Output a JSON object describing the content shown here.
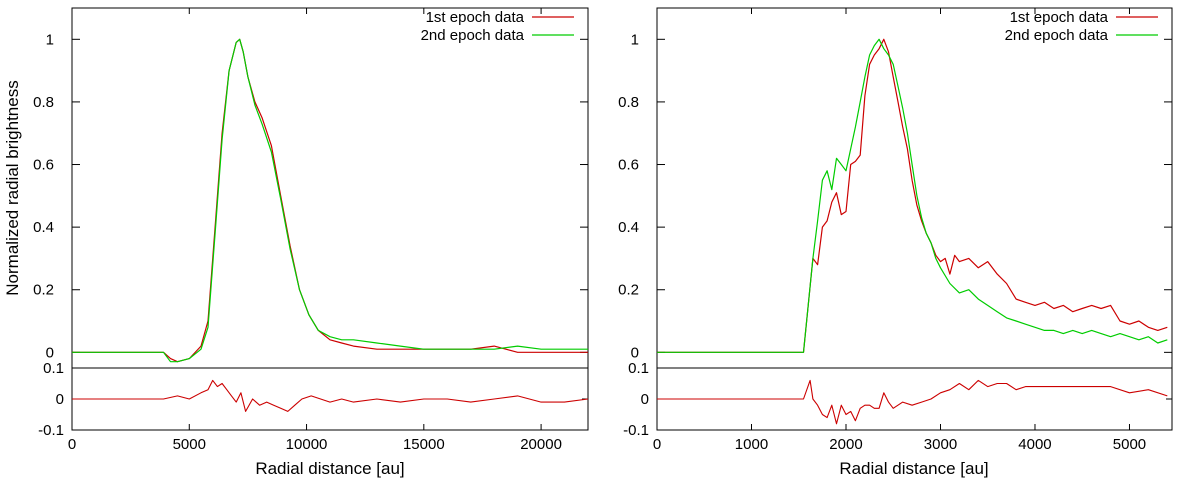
{
  "chart_data": [
    {
      "type": "line",
      "panel": "left",
      "xlabel": "Radial distance [au]",
      "ylabel": "Normalized radial brightness",
      "xlim": [
        0,
        22000
      ],
      "ylim": [
        -0.05,
        1.1
      ],
      "xticks": [
        0,
        5000,
        10000,
        15000,
        20000
      ],
      "xtick_labels": [
        "0",
        "5000",
        "10000",
        "15000",
        "20000"
      ],
      "yticks": [
        0,
        0.2,
        0.4,
        0.6,
        0.8,
        1
      ],
      "ytick_labels": [
        "0",
        "0.2",
        "0.4",
        "0.6",
        "0.8",
        "1"
      ],
      "legend_position": "top-right",
      "grid": false,
      "series": [
        {
          "name": "1st epoch data",
          "color": "#cc0000",
          "x": [
            0,
            3900,
            4200,
            4500,
            5000,
            5500,
            5800,
            6100,
            6400,
            6700,
            7000,
            7150,
            7300,
            7500,
            7800,
            8100,
            8500,
            8900,
            9300,
            9700,
            10100,
            10500,
            11000,
            11500,
            12000,
            13000,
            14000,
            15000,
            16000,
            17000,
            18000,
            18500,
            19000,
            20000,
            21000,
            22000
          ],
          "y": [
            0,
            0,
            -0.02,
            -0.03,
            -0.02,
            0.02,
            0.1,
            0.4,
            0.7,
            0.9,
            0.99,
            1.0,
            0.96,
            0.88,
            0.8,
            0.75,
            0.66,
            0.5,
            0.34,
            0.2,
            0.12,
            0.07,
            0.04,
            0.03,
            0.02,
            0.01,
            0.01,
            0.01,
            0.01,
            0.01,
            0.02,
            0.01,
            0.0,
            0.0,
            0.0,
            0.0
          ]
        },
        {
          "name": "2nd epoch data",
          "color": "#00cc00",
          "x": [
            0,
            3900,
            4200,
            4500,
            5000,
            5500,
            5800,
            6100,
            6400,
            6700,
            7000,
            7150,
            7300,
            7500,
            7800,
            8100,
            8500,
            8900,
            9300,
            9700,
            10100,
            10500,
            11000,
            11500,
            12000,
            13000,
            14000,
            15000,
            16000,
            17000,
            18000,
            19000,
            20000,
            21000,
            22000
          ],
          "y": [
            0,
            0,
            -0.03,
            -0.03,
            -0.02,
            0.01,
            0.08,
            0.38,
            0.68,
            0.9,
            0.99,
            1.0,
            0.96,
            0.88,
            0.79,
            0.73,
            0.64,
            0.49,
            0.33,
            0.2,
            0.12,
            0.07,
            0.05,
            0.04,
            0.04,
            0.03,
            0.02,
            0.01,
            0.01,
            0.01,
            0.01,
            0.02,
            0.01,
            0.01,
            0.01
          ]
        }
      ],
      "residual": {
        "ylim": [
          -0.1,
          0.1
        ],
        "yticks": [
          -0.1,
          0,
          0.1
        ],
        "ytick_labels": [
          "-0.1",
          "0",
          "0.1"
        ],
        "color": "#cc0000",
        "x": [
          0,
          3900,
          4500,
          5000,
          5500,
          5800,
          6000,
          6200,
          6400,
          6600,
          6800,
          7000,
          7200,
          7400,
          7700,
          8000,
          8300,
          8600,
          8900,
          9200,
          9500,
          9800,
          10200,
          10600,
          11000,
          11500,
          12000,
          13000,
          14000,
          15000,
          16000,
          17000,
          18000,
          19000,
          20000,
          21000,
          22000
        ],
        "y": [
          0,
          0,
          0.01,
          0.0,
          0.02,
          0.03,
          0.06,
          0.04,
          0.05,
          0.03,
          0.01,
          -0.01,
          0.02,
          -0.04,
          0.0,
          -0.02,
          -0.01,
          -0.02,
          -0.03,
          -0.04,
          -0.02,
          0.0,
          0.01,
          0.0,
          -0.01,
          0.0,
          -0.01,
          0.0,
          -0.01,
          0.0,
          0.0,
          -0.01,
          0.0,
          0.01,
          -0.01,
          -0.01,
          0.0
        ]
      }
    },
    {
      "type": "line",
      "panel": "right",
      "xlabel": "Radial distance [au]",
      "ylabel": "",
      "xlim": [
        0,
        5450
      ],
      "ylim": [
        -0.05,
        1.1
      ],
      "xticks": [
        0,
        1000,
        2000,
        3000,
        4000,
        5000
      ],
      "xtick_labels": [
        "0",
        "1000",
        "2000",
        "3000",
        "4000",
        "5000"
      ],
      "yticks": [
        0,
        0.2,
        0.4,
        0.6,
        0.8,
        1
      ],
      "ytick_labels": [
        "0",
        "0.2",
        "0.4",
        "0.6",
        "0.8",
        "1"
      ],
      "legend_position": "top-right",
      "grid": false,
      "series": [
        {
          "name": "1st epoch data",
          "color": "#cc0000",
          "x": [
            0,
            1550,
            1600,
            1650,
            1700,
            1750,
            1800,
            1850,
            1900,
            1950,
            2000,
            2050,
            2100,
            2150,
            2200,
            2250,
            2300,
            2350,
            2400,
            2450,
            2500,
            2550,
            2600,
            2650,
            2700,
            2750,
            2800,
            2850,
            2900,
            2950,
            3000,
            3050,
            3100,
            3150,
            3200,
            3300,
            3400,
            3500,
            3600,
            3700,
            3800,
            3900,
            4000,
            4100,
            4200,
            4300,
            4400,
            4500,
            4600,
            4700,
            4800,
            4900,
            5000,
            5100,
            5200,
            5300,
            5400
          ],
          "y": [
            0,
            0,
            0.15,
            0.3,
            0.28,
            0.4,
            0.42,
            0.48,
            0.51,
            0.44,
            0.45,
            0.6,
            0.61,
            0.63,
            0.82,
            0.92,
            0.95,
            0.97,
            1.0,
            0.96,
            0.88,
            0.8,
            0.72,
            0.65,
            0.55,
            0.47,
            0.42,
            0.38,
            0.35,
            0.31,
            0.29,
            0.3,
            0.25,
            0.31,
            0.29,
            0.3,
            0.27,
            0.29,
            0.25,
            0.22,
            0.17,
            0.16,
            0.15,
            0.16,
            0.14,
            0.15,
            0.13,
            0.14,
            0.15,
            0.14,
            0.15,
            0.1,
            0.09,
            0.1,
            0.08,
            0.07,
            0.08
          ]
        },
        {
          "name": "2nd epoch data",
          "color": "#00cc00",
          "x": [
            0,
            1550,
            1600,
            1650,
            1700,
            1750,
            1800,
            1850,
            1900,
            1950,
            2000,
            2050,
            2100,
            2150,
            2200,
            2250,
            2300,
            2350,
            2400,
            2450,
            2500,
            2550,
            2600,
            2650,
            2700,
            2750,
            2800,
            2850,
            2900,
            2950,
            3000,
            3100,
            3200,
            3300,
            3400,
            3500,
            3600,
            3700,
            3800,
            3900,
            4000,
            4100,
            4200,
            4300,
            4400,
            4500,
            4600,
            4700,
            4800,
            4900,
            5000,
            5100,
            5200,
            5300,
            5400
          ],
          "y": [
            0,
            0,
            0.15,
            0.3,
            0.42,
            0.55,
            0.58,
            0.52,
            0.62,
            0.6,
            0.58,
            0.65,
            0.72,
            0.8,
            0.88,
            0.95,
            0.98,
            1.0,
            0.97,
            0.95,
            0.92,
            0.85,
            0.78,
            0.7,
            0.6,
            0.5,
            0.43,
            0.38,
            0.35,
            0.3,
            0.27,
            0.22,
            0.19,
            0.2,
            0.17,
            0.15,
            0.13,
            0.11,
            0.1,
            0.09,
            0.08,
            0.07,
            0.07,
            0.06,
            0.07,
            0.06,
            0.07,
            0.06,
            0.05,
            0.06,
            0.05,
            0.04,
            0.05,
            0.03,
            0.04
          ]
        }
      ],
      "residual": {
        "ylim": [
          -0.1,
          0.1
        ],
        "yticks": [
          -0.1,
          0,
          0.1
        ],
        "ytick_labels": [
          "-0.1",
          "0",
          "0.1"
        ],
        "color": "#cc0000",
        "x": [
          0,
          1550,
          1620,
          1650,
          1700,
          1750,
          1800,
          1850,
          1900,
          1950,
          2000,
          2050,
          2100,
          2150,
          2200,
          2250,
          2300,
          2350,
          2400,
          2450,
          2500,
          2600,
          2700,
          2800,
          2900,
          3000,
          3100,
          3200,
          3300,
          3400,
          3500,
          3600,
          3700,
          3800,
          3900,
          4000,
          4200,
          4400,
          4600,
          4800,
          5000,
          5200,
          5400
        ],
        "y": [
          0,
          0,
          0.06,
          0.0,
          -0.02,
          -0.05,
          -0.06,
          -0.02,
          -0.08,
          -0.02,
          -0.05,
          -0.04,
          -0.07,
          -0.03,
          -0.02,
          -0.02,
          -0.03,
          -0.03,
          0.02,
          -0.01,
          -0.03,
          -0.01,
          -0.02,
          -0.01,
          0.0,
          0.02,
          0.03,
          0.05,
          0.03,
          0.06,
          0.04,
          0.05,
          0.05,
          0.03,
          0.04,
          0.04,
          0.04,
          0.04,
          0.04,
          0.04,
          0.02,
          0.03,
          0.01
        ]
      }
    }
  ]
}
